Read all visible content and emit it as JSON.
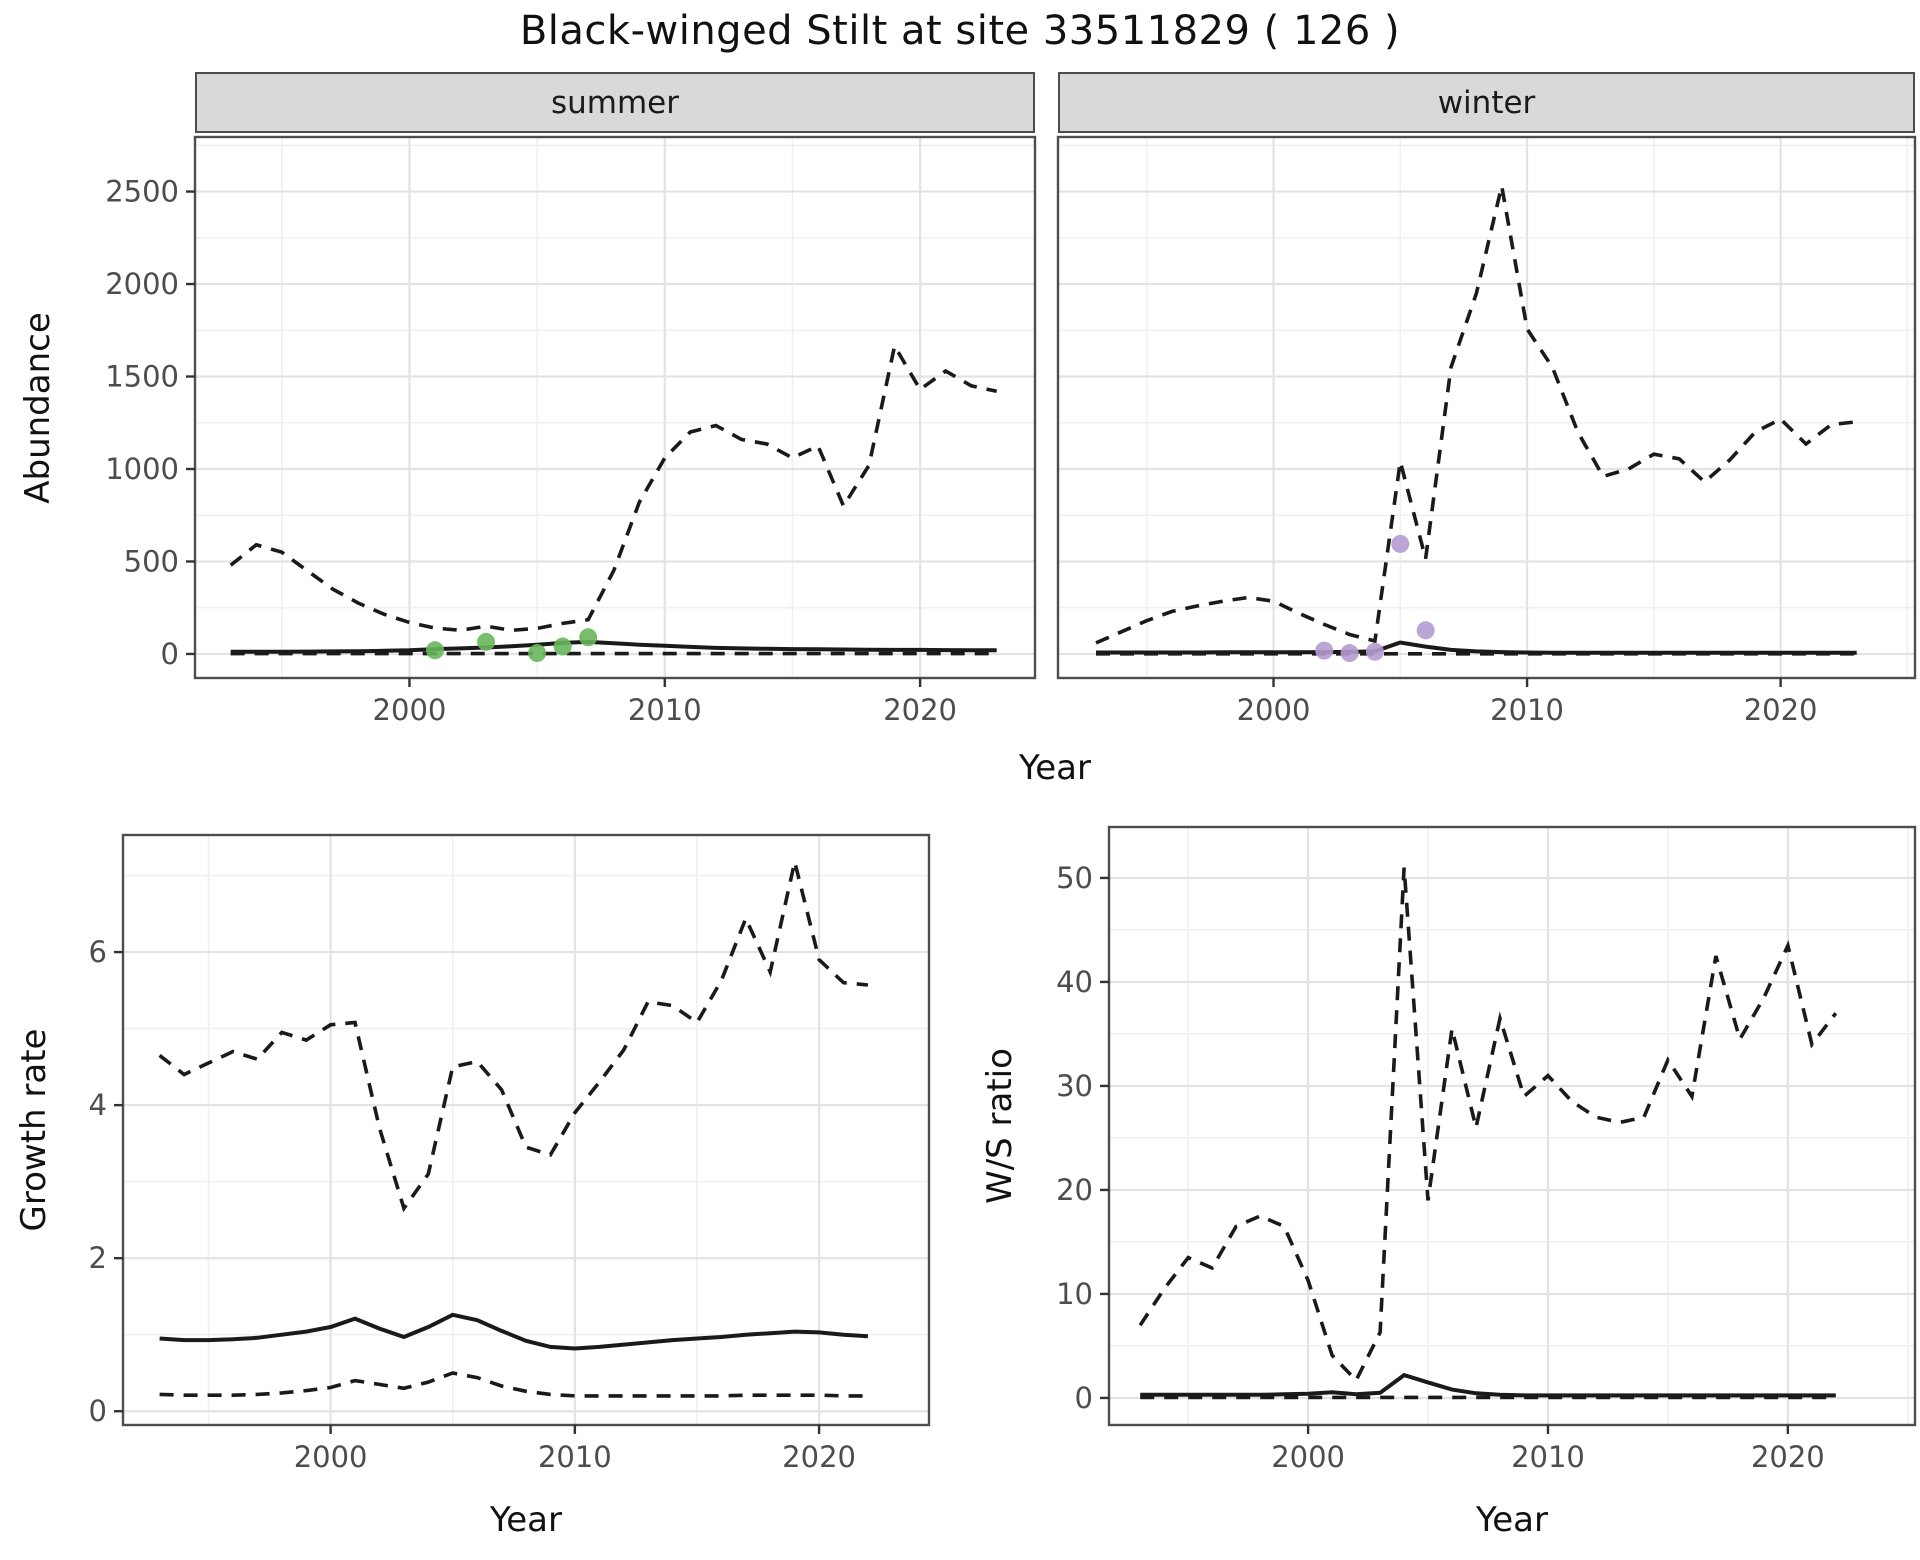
{
  "chart_data": {
    "type": "line",
    "title": "Black-winged Stilt at site 33511829 ( 126 )",
    "grid": true,
    "legend_position": "none",
    "point_colors": {
      "summer_observed": "#68b65c",
      "winter_observed": "#b49bd0"
    },
    "line_color": "#1a1a1a",
    "panels": [
      {
        "id": "summer",
        "facet_label": "summer",
        "xlabel": "Year",
        "ylabel": "Abundance",
        "x_ticks": [
          2000,
          2010,
          2020
        ],
        "y_ticks": [
          0,
          500,
          1000,
          1500,
          2000,
          2500
        ],
        "years": [
          1993,
          1994,
          1995,
          1996,
          1997,
          1998,
          1999,
          2000,
          2001,
          2002,
          2003,
          2004,
          2005,
          2006,
          2007,
          2008,
          2009,
          2010,
          2011,
          2012,
          2013,
          2014,
          2015,
          2016,
          2017,
          2018,
          2019,
          2020,
          2021,
          2022,
          2023
        ],
        "series": [
          {
            "name": "upper_dashed",
            "style": "dashed",
            "values": [
              480,
              590,
              550,
              450,
              350,
              275,
              215,
              170,
              140,
              128,
              150,
              128,
              138,
              165,
              185,
              450,
              820,
              1060,
              1200,
              1235,
              1160,
              1135,
              1060,
              1125,
              800,
              1020,
              1665,
              1430,
              1530,
              1450,
              1420
            ]
          },
          {
            "name": "median_solid",
            "style": "solid",
            "values": [
              12,
              12,
              12,
              13,
              14,
              15,
              17,
              20,
              26,
              30,
              35,
              42,
              50,
              60,
              65,
              58,
              50,
              44,
              38,
              33,
              30,
              28,
              26,
              25,
              24,
              23,
              22,
              22,
              21,
              20,
              20
            ]
          },
          {
            "name": "lower_dashed",
            "style": "dashed",
            "values": [
              2,
              2,
              2,
              2,
              2,
              2,
              2,
              2,
              2,
              2,
              2,
              2,
              2,
              2,
              2,
              2,
              2,
              2,
              2,
              2,
              2,
              2,
              2,
              2,
              2,
              2,
              2,
              2,
              2,
              2,
              2
            ]
          }
        ],
        "observed_points": {
          "color": "#68b65c",
          "years": [
            2001,
            2003,
            2005,
            2006,
            2007
          ],
          "values": [
            20,
            65,
            5,
            40,
            90
          ]
        }
      },
      {
        "id": "winter",
        "facet_label": "winter",
        "xlabel": "Year",
        "ylabel": "Abundance",
        "x_ticks": [
          2000,
          2010,
          2020
        ],
        "y_ticks": [
          0,
          500,
          1000,
          1500,
          2000,
          2500
        ],
        "years": [
          1993,
          1994,
          1995,
          1996,
          1997,
          1998,
          1999,
          2000,
          2001,
          2002,
          2003,
          2004,
          2005,
          2006,
          2007,
          2008,
          2009,
          2010,
          2011,
          2012,
          2013,
          2014,
          2015,
          2016,
          2017,
          2018,
          2019,
          2020,
          2021,
          2022,
          2023
        ],
        "series": [
          {
            "name": "upper_dashed",
            "style": "dashed",
            "values": [
              60,
              120,
              180,
              230,
              260,
              285,
              305,
              285,
              220,
              160,
              105,
              70,
              1040,
              515,
              1550,
              1950,
              2530,
              1757,
              1550,
              1200,
              960,
              1000,
              1080,
              1055,
              930,
              1050,
              1200,
              1270,
              1135,
              1240,
              1255
            ]
          },
          {
            "name": "median_solid",
            "style": "solid",
            "values": [
              8,
              8,
              8,
              8,
              8,
              9,
              9,
              9,
              9,
              10,
              11,
              14,
              62,
              40,
              22,
              14,
              10,
              8,
              7,
              6,
              6,
              6,
              6,
              6,
              6,
              6,
              6,
              6,
              6,
              6,
              6
            ]
          },
          {
            "name": "lower_dashed",
            "style": "dashed",
            "values": [
              1,
              1,
              1,
              1,
              1,
              1,
              1,
              1,
              1,
              1,
              1,
              1,
              1,
              1,
              1,
              1,
              1,
              1,
              1,
              1,
              1,
              1,
              1,
              1,
              1,
              1,
              1,
              1,
              1,
              1,
              1
            ]
          }
        ],
        "observed_points": {
          "color": "#b49bd0",
          "years": [
            2002,
            2003,
            2004,
            2005,
            2006
          ],
          "values": [
            18,
            5,
            12,
            595,
            128
          ]
        }
      },
      {
        "id": "growth_rate",
        "facet_label": "",
        "xlabel": "Year",
        "ylabel": "Growth rate",
        "x_ticks": [
          2000,
          2010,
          2020
        ],
        "y_ticks": [
          0,
          2,
          4,
          6
        ],
        "years": [
          1993,
          1994,
          1995,
          1996,
          1997,
          1998,
          1999,
          2000,
          2001,
          2002,
          2003,
          2004,
          2005,
          2006,
          2007,
          2008,
          2009,
          2010,
          2011,
          2012,
          2013,
          2014,
          2015,
          2016,
          2017,
          2018,
          2019,
          2020,
          2021,
          2022
        ],
        "series": [
          {
            "name": "upper_dashed",
            "style": "dashed",
            "values": [
              4.65,
              4.4,
              4.55,
              4.7,
              4.6,
              4.95,
              4.85,
              5.05,
              5.08,
              3.7,
              2.65,
              3.1,
              4.5,
              4.57,
              4.2,
              3.45,
              3.35,
              3.9,
              4.3,
              4.72,
              5.35,
              5.3,
              5.08,
              5.63,
              6.44,
              5.74,
              7.18,
              5.9,
              5.6,
              5.57
            ]
          },
          {
            "name": "median_solid",
            "style": "solid",
            "values": [
              0.95,
              0.93,
              0.93,
              0.94,
              0.96,
              1.0,
              1.04,
              1.1,
              1.21,
              1.08,
              0.97,
              1.1,
              1.26,
              1.19,
              1.05,
              0.92,
              0.84,
              0.82,
              0.84,
              0.87,
              0.9,
              0.93,
              0.95,
              0.97,
              1.0,
              1.02,
              1.04,
              1.03,
              1.0,
              0.98
            ]
          },
          {
            "name": "lower_dashed",
            "style": "dashed",
            "values": [
              0.22,
              0.21,
              0.21,
              0.21,
              0.22,
              0.24,
              0.27,
              0.31,
              0.4,
              0.35,
              0.3,
              0.38,
              0.5,
              0.44,
              0.33,
              0.26,
              0.22,
              0.2,
              0.2,
              0.2,
              0.2,
              0.2,
              0.2,
              0.2,
              0.21,
              0.21,
              0.21,
              0.21,
              0.2,
              0.2
            ]
          }
        ]
      },
      {
        "id": "ws_ratio",
        "facet_label": "",
        "xlabel": "Year",
        "ylabel": "W/S ratio",
        "x_ticks": [
          2000,
          2010,
          2020
        ],
        "y_ticks": [
          0,
          10,
          20,
          30,
          40,
          50
        ],
        "years": [
          1993,
          1994,
          1995,
          1996,
          1997,
          1998,
          1999,
          2000,
          2001,
          2002,
          2003,
          2004,
          2005,
          2006,
          2007,
          2008,
          2009,
          2010,
          2011,
          2012,
          2013,
          2014,
          2015,
          2016,
          2017,
          2018,
          2019,
          2020,
          2021,
          2022
        ],
        "series": [
          {
            "name": "upper_dashed",
            "style": "dashed",
            "values": [
              7,
              10.5,
              13.5,
              12.5,
              16.5,
              17.5,
              16.5,
              11.3,
              4.1,
              1.7,
              6.3,
              51,
              19,
              35.5,
              26,
              36.5,
              29,
              31,
              28.5,
              27,
              26.5,
              27,
              32.5,
              29,
              42.5,
              34.5,
              38.5,
              43.5,
              34,
              37
            ]
          },
          {
            "name": "median_solid",
            "style": "solid",
            "values": [
              0.3,
              0.3,
              0.3,
              0.3,
              0.3,
              0.3,
              0.35,
              0.4,
              0.55,
              0.35,
              0.5,
              2.2,
              1.5,
              0.8,
              0.45,
              0.3,
              0.25,
              0.25,
              0.25,
              0.25,
              0.25,
              0.25,
              0.25,
              0.25,
              0.25,
              0.25,
              0.25,
              0.25,
              0.25,
              0.25
            ]
          },
          {
            "name": "lower_dashed",
            "style": "dashed",
            "values": [
              0.05,
              0.05,
              0.05,
              0.05,
              0.05,
              0.05,
              0.05,
              0.05,
              0.05,
              0.05,
              0.05,
              0.05,
              0.05,
              0.05,
              0.05,
              0.05,
              0.05,
              0.05,
              0.05,
              0.05,
              0.05,
              0.05,
              0.05,
              0.05,
              0.05,
              0.05,
              0.05,
              0.05,
              0.05,
              0.05
            ]
          }
        ]
      }
    ]
  }
}
